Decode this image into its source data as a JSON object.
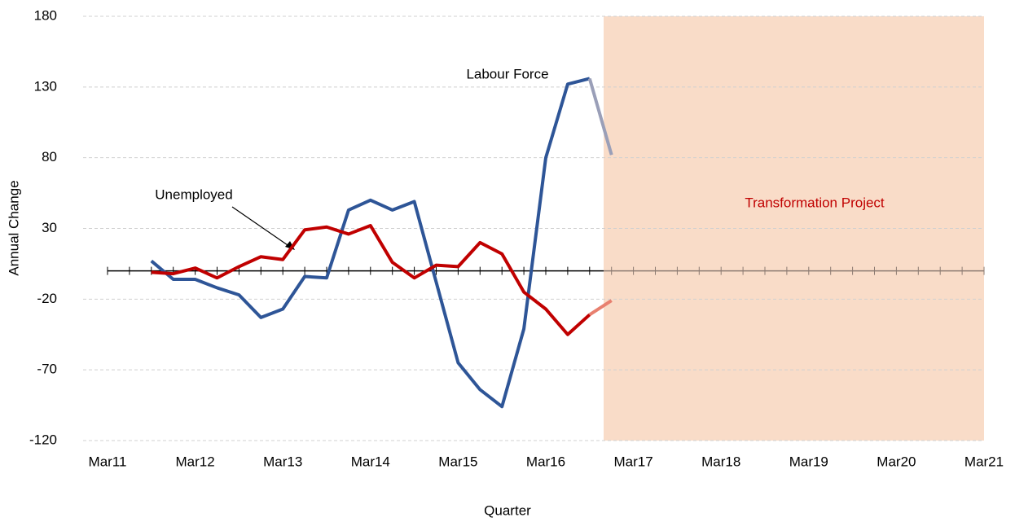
{
  "chart_data": {
    "type": "line",
    "x_label": "Quarter",
    "y_label": "Annual Change",
    "categories": [
      "Mar11",
      null,
      null,
      null,
      "Mar12",
      null,
      null,
      null,
      "Mar13",
      null,
      null,
      null,
      "Mar14",
      null,
      null,
      null,
      "Mar15",
      null,
      null,
      null,
      "Mar16",
      null,
      null,
      null,
      "Mar17",
      null,
      null,
      null,
      "Mar18",
      null,
      null,
      null,
      "Mar19",
      null,
      null,
      null,
      "Mar20",
      null,
      null,
      null,
      "Mar21"
    ],
    "series": [
      {
        "name": "Labour Force",
        "color": "#2e5597",
        "faded_color": "#9a9fb8",
        "values": [
          null,
          null,
          7,
          -6,
          -6,
          -12,
          -17,
          -33,
          -27,
          -4,
          -5,
          43,
          50,
          43,
          49,
          -8,
          -65,
          -84,
          -96,
          -41,
          80,
          132,
          136,
          82,
          null,
          null,
          null,
          null,
          null,
          null,
          null,
          null,
          null,
          null,
          null,
          null,
          null,
          null,
          null,
          null,
          null
        ]
      },
      {
        "name": "Unemployed",
        "color": "#c00000",
        "faded_color": "#e8806f",
        "values": [
          null,
          null,
          -1,
          -2,
          2,
          -5,
          3,
          10,
          8,
          29,
          31,
          26,
          32,
          6,
          -5,
          4,
          3,
          20,
          12,
          -15,
          -27,
          -45,
          -31,
          -21,
          null,
          null,
          null,
          null,
          null,
          null,
          null,
          null,
          null,
          null,
          null,
          null,
          null,
          null,
          null,
          null,
          null
        ]
      }
    ],
    "annotations": [
      {
        "text": "Transformation Project",
        "color": "#c00000",
        "shade": "#f9dcc8"
      }
    ],
    "ylim": [
      -120,
      180
    ],
    "yticks": [
      -120,
      -70,
      -20,
      30,
      80,
      130,
      180
    ],
    "grid": true
  }
}
